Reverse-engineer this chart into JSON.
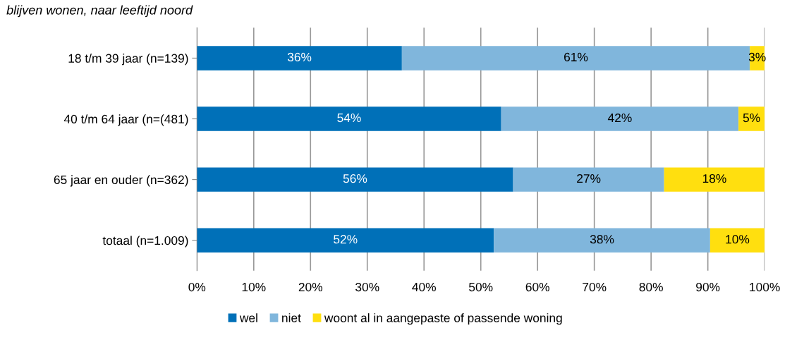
{
  "chart_data": {
    "type": "bar",
    "orientation": "horizontal",
    "stacked": true,
    "title": "blijven wonen, naar leeftijd noord",
    "categories": [
      "18 t/m 39 jaar (n=139)",
      "40 t/m 64 jaar (n=(481)",
      "65 jaar en ouder (n=362)",
      "totaal (n=1.009)"
    ],
    "series": [
      {
        "name": "wel",
        "color": "#0070b8",
        "values": [
          36.1,
          53.6,
          55.7,
          52.3
        ],
        "value_labels": [
          "36%",
          "54%",
          "56%",
          "52%"
        ]
      },
      {
        "name": "niet",
        "color": "#80b6dc",
        "values": [
          61.3,
          41.8,
          26.6,
          38.1
        ],
        "value_labels": [
          "61%",
          "42%",
          "27%",
          "38%"
        ]
      },
      {
        "name": "woont al in aangepaste of passende woning",
        "color": "#ffdf0f",
        "values": [
          2.6,
          4.6,
          17.7,
          9.6
        ],
        "value_labels": [
          "3%",
          "5%",
          "18%",
          "10%"
        ]
      }
    ],
    "xlim": [
      0,
      100
    ],
    "xticks": [
      {
        "value": 0,
        "label": "0%"
      },
      {
        "value": 10,
        "label": "10%"
      },
      {
        "value": 20,
        "label": "20%"
      },
      {
        "value": 30,
        "label": "30%"
      },
      {
        "value": 40,
        "label": "40%"
      },
      {
        "value": 50,
        "label": "50%"
      },
      {
        "value": 60,
        "label": "60%"
      },
      {
        "value": 70,
        "label": "70%"
      },
      {
        "value": 80,
        "label": "80%"
      },
      {
        "value": 90,
        "label": "90%"
      },
      {
        "value": 100,
        "label": "100%"
      }
    ],
    "grid": "x",
    "legend": "bottom"
  }
}
